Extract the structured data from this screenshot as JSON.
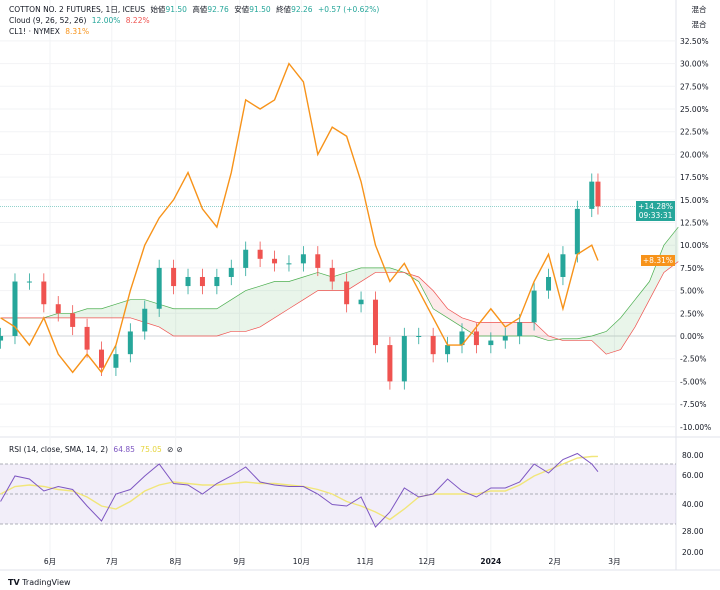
{
  "header": {
    "symbol": "COTTON NO. 2 FUTURES, 1日, ICEUS",
    "open_label": "始値",
    "open": "91.50",
    "high_label": "高値",
    "high": "92.76",
    "low_label": "安値",
    "low": "91.50",
    "close_label": "終値",
    "close": "92.26",
    "change": "+0.57 (+0.62%)"
  },
  "cloud_legend": {
    "label": "Cloud (9, 26, 52, 26)",
    "span_a": "12.00%",
    "span_b": "8.22%"
  },
  "compare_legend": {
    "label": "CL1! · NYMEX",
    "value": "8.31%"
  },
  "rsi_legend": {
    "label": "RSI (14, close, SMA, 14, 2)",
    "rsi": "64.85",
    "sma": "75.05"
  },
  "scale_mode": [
    "混合",
    "混合"
  ],
  "badges": {
    "main_value": "+14.28%",
    "countdown": "09:33:31",
    "compare_value": "+8.31%"
  },
  "colors": {
    "up": "#26a69a",
    "down": "#ef5350",
    "compare": "#f7931a",
    "cloud_up": "#4caf50",
    "cloud_down": "#ef5350",
    "rsi": "#7e57c2",
    "rsi_sma": "#f1e67a"
  },
  "watermark": "TradingView",
  "chart_data": [
    {
      "type": "candlestick",
      "ylabel": "",
      "y_unit": "%",
      "ylim": [
        -10,
        32.5
      ],
      "y_ticks": [
        "32.50%",
        "30.00%",
        "27.50%",
        "25.00%",
        "22.50%",
        "20.00%",
        "17.50%",
        "15.00%",
        "12.50%",
        "10.00%",
        "7.50%",
        "5.00%",
        "2.50%",
        "0.00%",
        "-2.50%",
        "-5.00%",
        "-7.50%",
        "-10.00%"
      ],
      "x_ticks": [
        {
          "label": "6月",
          "date": "2023-06-01"
        },
        {
          "label": "7月",
          "date": "2023-07-01"
        },
        {
          "label": "8月",
          "date": "2023-08-01"
        },
        {
          "label": "9月",
          "date": "2023-09-01"
        },
        {
          "label": "10月",
          "date": "2023-10-01"
        },
        {
          "label": "11月",
          "date": "2023-11-01"
        },
        {
          "label": "12月",
          "date": "2023-12-01"
        },
        {
          "label": "2024",
          "date": "2024-01-01"
        },
        {
          "label": "2月",
          "date": "2024-02-01"
        },
        {
          "label": "3月",
          "date": "2024-03-01"
        }
      ],
      "dates": [
        "2023-05-08",
        "2023-05-15",
        "2023-05-22",
        "2023-05-29",
        "2023-06-05",
        "2023-06-12",
        "2023-06-19",
        "2023-06-26",
        "2023-07-03",
        "2023-07-10",
        "2023-07-17",
        "2023-07-24",
        "2023-07-31",
        "2023-08-07",
        "2023-08-14",
        "2023-08-21",
        "2023-08-28",
        "2023-09-04",
        "2023-09-11",
        "2023-09-18",
        "2023-09-25",
        "2023-10-02",
        "2023-10-09",
        "2023-10-16",
        "2023-10-23",
        "2023-10-30",
        "2023-11-06",
        "2023-11-13",
        "2023-11-20",
        "2023-11-27",
        "2023-12-04",
        "2023-12-11",
        "2023-12-18",
        "2023-12-25",
        "2024-01-01",
        "2024-01-08",
        "2024-01-15",
        "2024-01-22",
        "2024-01-29",
        "2024-02-05",
        "2024-02-12",
        "2024-02-19",
        "2024-02-22"
      ],
      "series": [
        {
          "name": "COTTON NO. 2 FUTURES",
          "kind": "candles",
          "close": [
            0,
            6,
            6,
            3.5,
            2.5,
            1,
            -1.5,
            -3.5,
            -2,
            0.5,
            3,
            7.5,
            5.5,
            6.5,
            5.5,
            6.5,
            7.5,
            9.5,
            8.5,
            8,
            8,
            9,
            7.5,
            6,
            3.5,
            4,
            -1,
            -5,
            0,
            0,
            -2,
            -1,
            0.5,
            -1,
            -0.5,
            0,
            1.5,
            5,
            6.5,
            9,
            14,
            17,
            14.28
          ]
        },
        {
          "name": "CL1! · NYMEX",
          "kind": "line",
          "values": [
            2,
            1,
            -1,
            2,
            -2,
            -4,
            -2,
            -4,
            -1,
            5,
            10,
            13,
            15,
            18,
            14,
            12,
            18,
            26,
            25,
            26,
            30,
            28,
            20,
            23,
            22,
            17,
            10,
            6,
            8,
            5,
            2,
            -1,
            -1,
            1,
            3,
            1,
            2,
            6,
            9,
            3,
            9,
            10,
            8.31
          ]
        }
      ],
      "cloud": {
        "dates": [
          "2023-05-08",
          "2023-05-15",
          "2023-05-22",
          "2023-05-29",
          "2023-06-05",
          "2023-06-12",
          "2023-06-19",
          "2023-06-26",
          "2023-07-03",
          "2023-07-10",
          "2023-07-17",
          "2023-07-24",
          "2023-07-31",
          "2023-08-07",
          "2023-08-14",
          "2023-08-21",
          "2023-08-28",
          "2023-09-04",
          "2023-09-11",
          "2023-09-18",
          "2023-09-25",
          "2023-10-02",
          "2023-10-09",
          "2023-10-16",
          "2023-10-23",
          "2023-10-30",
          "2023-11-06",
          "2023-11-13",
          "2023-11-20",
          "2023-11-27",
          "2023-12-04",
          "2023-12-11",
          "2023-12-18",
          "2023-12-25",
          "2024-01-01",
          "2024-01-08",
          "2024-01-15",
          "2024-01-22",
          "2024-01-29",
          "2024-02-05",
          "2024-02-12",
          "2024-02-19",
          "2024-02-26",
          "2024-03-04",
          "2024-03-11",
          "2024-03-18",
          "2024-03-25",
          "2024-04-01"
        ],
        "span_a": [
          2,
          2,
          2,
          2,
          2.5,
          2.5,
          3,
          3,
          3.5,
          4,
          4,
          3.5,
          3,
          3,
          3,
          3,
          4,
          5,
          5.5,
          6,
          6,
          6.5,
          7,
          6.5,
          7,
          7.5,
          7.5,
          7.5,
          7,
          6,
          3,
          2,
          1,
          0,
          0,
          0,
          0,
          0,
          -0.5,
          -0.3,
          -0.3,
          0,
          0.5,
          2,
          4,
          6,
          10,
          12
        ],
        "span_b": [
          2,
          2,
          2,
          2,
          2,
          2,
          2,
          2,
          2,
          2,
          1.5,
          1,
          0,
          0,
          0,
          0,
          0.5,
          0.5,
          1,
          2,
          3,
          4,
          5,
          5,
          5,
          6,
          7,
          7,
          7,
          6.5,
          5,
          3,
          2,
          1.5,
          1.5,
          1.5,
          1.5,
          1.5,
          0,
          -0.5,
          -0.5,
          -0.5,
          -2,
          -1.5,
          1,
          4,
          7,
          8.2
        ]
      }
    },
    {
      "type": "line",
      "title": "RSI (14, close, SMA, 14, 2)",
      "y_ticks": [
        "80.00",
        "60.00",
        "40.00",
        "28.00",
        "20.00"
      ],
      "bands": [
        70,
        50,
        30
      ],
      "dates_ref": "same as price",
      "series": [
        {
          "name": "RSI",
          "values": [
            45,
            62,
            60,
            52,
            55,
            53,
            42,
            32,
            50,
            53,
            62,
            70,
            57,
            56,
            50,
            57,
            62,
            68,
            58,
            56,
            55,
            55,
            50,
            43,
            42,
            48,
            28,
            38,
            54,
            48,
            50,
            60,
            52,
            48,
            54,
            54,
            58,
            70,
            64,
            73,
            77,
            70,
            64.85
          ]
        },
        {
          "name": "SMA",
          "values": [
            50,
            55,
            56,
            55,
            53,
            52,
            48,
            42,
            40,
            45,
            52,
            56,
            58,
            57,
            56,
            56,
            57,
            58,
            57,
            57,
            56,
            55,
            53,
            50,
            45,
            42,
            38,
            33,
            40,
            48,
            50,
            50,
            50,
            50,
            52,
            52,
            56,
            62,
            66,
            70,
            74,
            75,
            75.05
          ]
        }
      ]
    }
  ]
}
